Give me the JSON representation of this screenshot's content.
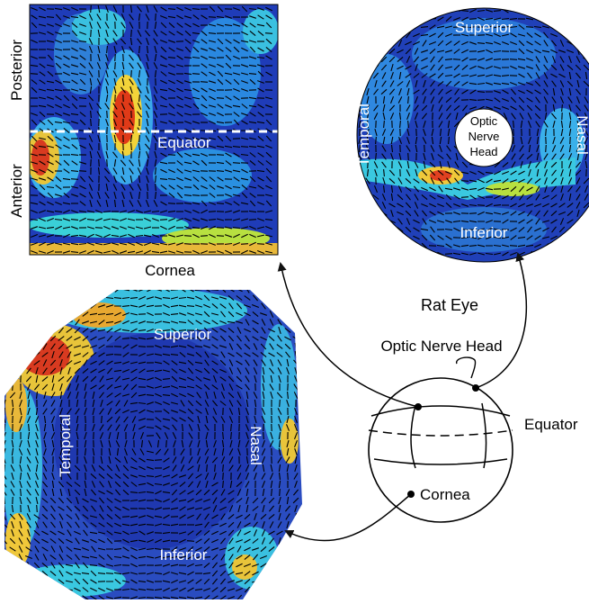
{
  "square_map": {
    "equator_label": "Equator",
    "posterior_label": "Posterior",
    "anterior_label": "Anterior",
    "cornea_label": "Cornea"
  },
  "polar_map": {
    "superior_label": "Superior",
    "inferior_label": "Inferior",
    "temporal_label": "Temporal",
    "nasal_label": "Nasal",
    "onh_line1": "Optic",
    "onh_line2": "Nerve",
    "onh_line3": "Head"
  },
  "cornea_map": {
    "superior_label": "Superior",
    "inferior_label": "Inferior",
    "temporal_label": "Temporal",
    "nasal_label": "Nasal"
  },
  "eye_diagram": {
    "title": "Rat Eye",
    "optic_nerve_head_label": "Optic Nerve Head",
    "equator_label": "Equator",
    "cornea_label": "Cornea"
  },
  "colors": {
    "low": "#1b2fa8",
    "mid": "#2aa8e8",
    "cyan": "#4fe0d8",
    "high": "#f5e23a",
    "peak": "#e03018",
    "ink": "#111111"
  }
}
